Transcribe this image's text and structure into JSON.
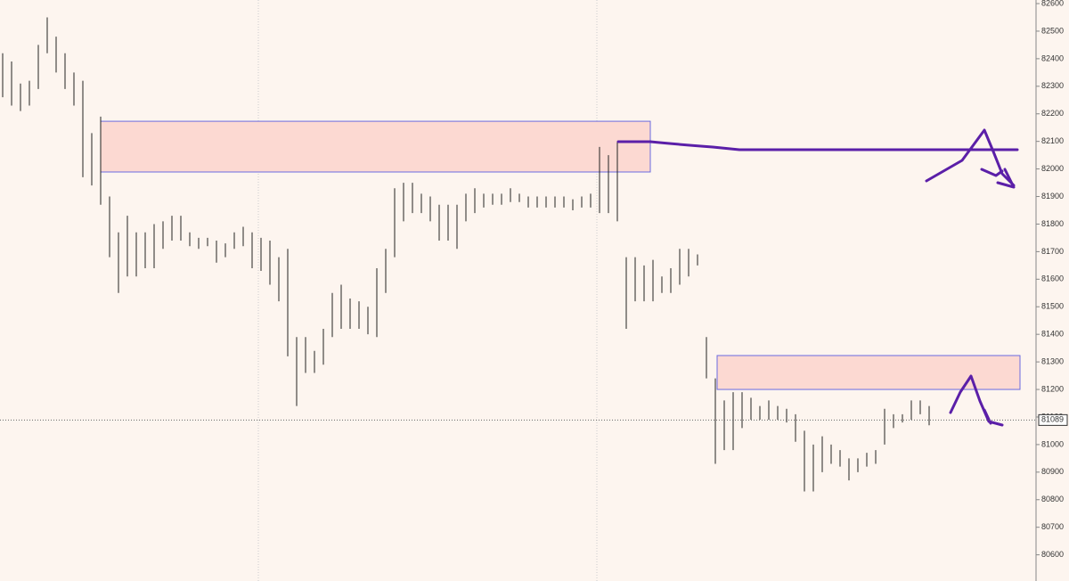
{
  "chart_data": {
    "type": "ohlc",
    "color": "#222222",
    "ylim": [
      80505,
      82613
    ],
    "yticks": [
      80600,
      80700,
      80800,
      80900,
      81000,
      81100,
      81200,
      81300,
      81400,
      81500,
      81600,
      81700,
      81800,
      81900,
      82000,
      82100,
      82200,
      82300,
      82400,
      82500,
      82600
    ],
    "high": [
      82420,
      82390,
      82310,
      82320,
      82450,
      82550,
      82480,
      82420,
      82350,
      82320,
      82130,
      82190,
      81900,
      81770,
      81830,
      81770,
      81770,
      81800,
      81810,
      81830,
      81830,
      81770,
      81750,
      81750,
      81740,
      81730,
      81770,
      81790,
      81770,
      81750,
      81740,
      81680,
      81710,
      81390,
      81390,
      81340,
      81420,
      81550,
      81580,
      81530,
      81520,
      81500,
      81640,
      81710,
      81930,
      81950,
      81950,
      81910,
      81900,
      81870,
      81870,
      81870,
      81910,
      81930,
      81910,
      81910,
      81910,
      81930,
      81910,
      81900,
      81900,
      81900,
      81900,
      81900,
      81890,
      81900,
      81910,
      82080,
      82050,
      82100,
      81680,
      81680,
      81650,
      81670,
      81610,
      81640,
      81710,
      81710,
      81690,
      81390,
      81240,
      81160,
      81190,
      81190,
      81170,
      81140,
      81160,
      81140,
      81130,
      81110,
      81050,
      81000,
      81030,
      81000,
      80980,
      80950,
      80950,
      80970,
      80980,
      81130,
      81110,
      81110,
      81160,
      81160,
      81140
    ],
    "low": [
      82260,
      82230,
      82210,
      82230,
      82290,
      82420,
      82350,
      82290,
      82230,
      81970,
      81940,
      81870,
      81680,
      81550,
      81610,
      81610,
      81640,
      81640,
      81710,
      81740,
      81740,
      81720,
      81710,
      81720,
      81660,
      81680,
      81710,
      81720,
      81640,
      81630,
      81580,
      81520,
      81320,
      81140,
      81260,
      81260,
      81290,
      81390,
      81420,
      81420,
      81420,
      81400,
      81390,
      81550,
      81680,
      81810,
      81840,
      81840,
      81810,
      81740,
      81740,
      81710,
      81810,
      81840,
      81860,
      81870,
      81870,
      81880,
      81880,
      81860,
      81860,
      81860,
      81860,
      81860,
      81850,
      81860,
      81860,
      81840,
      81840,
      81810,
      81420,
      81520,
      81520,
      81520,
      81550,
      81550,
      81580,
      81610,
      81650,
      81240,
      80930,
      80980,
      80980,
      81060,
      81090,
      81090,
      81090,
      81090,
      81080,
      81010,
      80830,
      80830,
      80900,
      80930,
      80920,
      80870,
      80900,
      80920,
      80930,
      81000,
      81060,
      81080,
      81090,
      81110,
      81070
    ],
    "zones": [
      {
        "high": 82173,
        "low": 81989,
        "color": "#fcd9d2"
      },
      {
        "high": 81323,
        "low": 81200,
        "color": "#fcd9d2"
      }
    ],
    "last_price": 81089
  }
}
